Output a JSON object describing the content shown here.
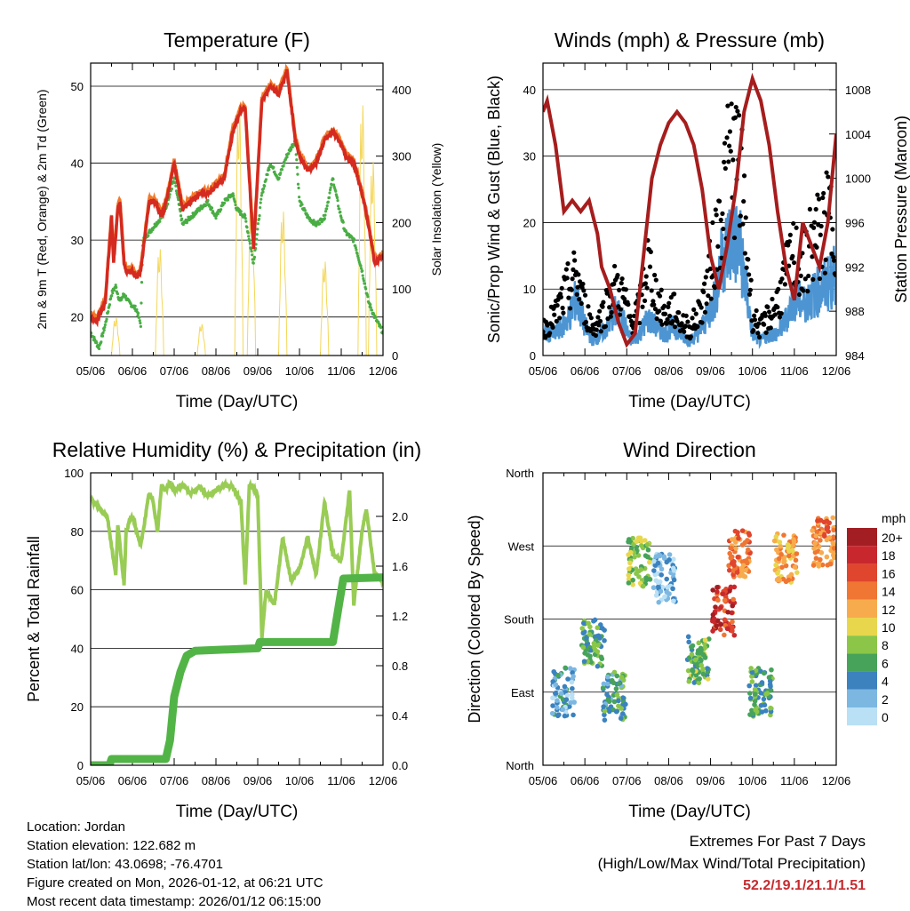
{
  "colors": {
    "temp_2m": "#d42a20",
    "temp_9m": "#f07a2a",
    "dewpoint": "#49ad44",
    "solar": "#f4d75a",
    "pressure": "#a61d1d",
    "wind": "#4d95d2",
    "gust": "#000000",
    "rh": "#99cc55",
    "precip": "#52b447"
  },
  "chart_data": [
    {
      "id": "temperature",
      "type": "line",
      "title": "Temperature (F)",
      "xlabel": "Time (Day/UTC)",
      "ylabel_left": "2m & 9m T (Red, Orange) & 2m Td (Green)",
      "ylabel_right": "Solar Insolation (Yellow)",
      "x_ticks": [
        "05/06",
        "06/06",
        "07/06",
        "08/06",
        "09/06",
        "10/06",
        "11/06",
        "12/06"
      ],
      "xlim": [
        0,
        7
      ],
      "ylim_left": [
        15,
        53
      ],
      "ylim_right": [
        0,
        440
      ],
      "y_ticks_left": [
        20,
        30,
        40,
        50
      ],
      "y_ticks_right": [
        0,
        100,
        200,
        300,
        400
      ],
      "series": [
        {
          "name": "2m T",
          "axis": "left",
          "color_key": "temp_2m",
          "x": [
            0,
            0.15,
            0.35,
            0.5,
            0.55,
            0.65,
            0.7,
            0.8,
            0.85,
            1.0,
            1.1,
            1.2,
            1.4,
            1.55,
            1.7,
            1.85,
            2.0,
            2.2,
            2.4,
            2.6,
            2.8,
            3.0,
            3.2,
            3.4,
            3.6,
            3.7,
            3.9,
            4.1,
            4.3,
            4.5,
            4.7,
            4.9,
            5.0,
            5.2,
            5.4,
            5.6,
            5.8,
            5.95,
            6.1,
            6.3,
            6.5,
            6.65,
            6.8,
            7.0
          ],
          "y": [
            20,
            19.5,
            22,
            33,
            27,
            34,
            35,
            27,
            26,
            26,
            25,
            26,
            35,
            35,
            33,
            36,
            40,
            34,
            35,
            36,
            36,
            37,
            38,
            44,
            47,
            47,
            29,
            48,
            50,
            49,
            52,
            43,
            41,
            39,
            40,
            43,
            44,
            43,
            41,
            40,
            36,
            32,
            27,
            28
          ]
        },
        {
          "name": "2m Td",
          "axis": "left",
          "color_key": "dewpoint",
          "x": [
            0,
            0.2,
            0.35,
            0.5,
            0.6,
            0.7,
            0.8,
            0.9,
            1.1,
            1.2,
            1.25,
            1.4,
            1.55,
            1.7,
            1.85,
            2.0,
            2.2,
            2.4,
            2.6,
            2.8,
            3.0,
            3.2,
            3.4,
            3.5,
            3.7,
            3.9,
            4.1,
            4.3,
            4.5,
            4.7,
            4.9,
            5.0,
            5.2,
            5.4,
            5.6,
            5.8,
            5.95,
            6.1,
            6.3,
            6.5,
            6.65,
            6.8,
            7.0
          ],
          "y": [
            18,
            16,
            19,
            23,
            24,
            22,
            23,
            22,
            21,
            19,
            30,
            31,
            32,
            33,
            35,
            38,
            32,
            33,
            34,
            35,
            33,
            35,
            36,
            34,
            33,
            27,
            36,
            40,
            38,
            41,
            43,
            35,
            33,
            32,
            33,
            38,
            34,
            31,
            30,
            26,
            22,
            20,
            18
          ]
        },
        {
          "name": "Solar",
          "axis": "right",
          "color_key": "solar",
          "peaks": [
            [
              0.6,
              60
            ],
            [
              1.65,
              170
            ],
            [
              2.65,
              50
            ],
            [
              3.55,
              400
            ],
            [
              3.85,
              250
            ],
            [
              4.6,
              230
            ],
            [
              5.6,
              150
            ],
            [
              6.5,
              400
            ],
            [
              6.75,
              310
            ]
          ]
        }
      ]
    },
    {
      "id": "winds",
      "type": "scatter",
      "title": "Winds (mph) & Pressure (mb)",
      "xlabel": "Time (Day/UTC)",
      "ylabel_left": "Sonic/Prop Wind & Gust (Blue, Black)",
      "ylabel_right": "Station Pressure (Maroon)",
      "x_ticks": [
        "05/06",
        "06/06",
        "07/06",
        "08/06",
        "09/06",
        "10/06",
        "11/06",
        "12/06"
      ],
      "xlim": [
        0,
        7
      ],
      "ylim_left": [
        0,
        44
      ],
      "ylim_right": [
        984,
        1010.4
      ],
      "y_ticks_left": [
        0,
        10,
        20,
        30,
        40
      ],
      "y_ticks_right": [
        984,
        988,
        992,
        996,
        1000,
        1004,
        1008
      ],
      "series": [
        {
          "name": "Wind",
          "axis": "left",
          "color_key": "wind",
          "x": [
            0,
            0.3,
            0.6,
            0.8,
            1.0,
            1.2,
            1.4,
            1.55,
            1.7,
            1.9,
            2.1,
            2.3,
            2.5,
            2.7,
            2.9,
            3.1,
            3.3,
            3.5,
            3.7,
            3.9,
            4.1,
            4.3,
            4.5,
            4.7,
            4.9,
            5.0,
            5.2,
            5.4,
            5.6,
            5.8,
            6.0,
            6.2,
            6.4,
            6.6,
            6.8,
            7.0
          ],
          "y": [
            3,
            3,
            5,
            8,
            4,
            2,
            3,
            4,
            6,
            5,
            2,
            3,
            5,
            4,
            3,
            4,
            3,
            2,
            3,
            5,
            8,
            14,
            16,
            15,
            7,
            3,
            2,
            3,
            3,
            5,
            8,
            7,
            8,
            9,
            10,
            11
          ]
        },
        {
          "name": "Gust",
          "axis": "left",
          "color_key": "gust",
          "x": [
            0,
            0.3,
            0.6,
            0.8,
            1.0,
            1.2,
            1.4,
            1.55,
            1.7,
            1.9,
            2.1,
            2.3,
            2.5,
            2.7,
            2.9,
            3.1,
            3.3,
            3.5,
            3.7,
            3.9,
            4.1,
            4.3,
            4.5,
            4.7,
            4.9,
            5.0,
            5.2,
            5.4,
            5.6,
            5.8,
            6.0,
            6.2,
            6.4,
            6.6,
            6.8,
            7.0
          ],
          "y": [
            4,
            6,
            10,
            12,
            7,
            4,
            6,
            8,
            10,
            9,
            5,
            7,
            14,
            9,
            6,
            7,
            5,
            4,
            6,
            10,
            16,
            24,
            30,
            28,
            14,
            6,
            4,
            6,
            8,
            12,
            15,
            13,
            17,
            18,
            20,
            20
          ]
        },
        {
          "name": "Pressure",
          "axis": "right",
          "color_key": "pressure",
          "x": [
            0,
            0.1,
            0.3,
            0.5,
            0.7,
            0.9,
            1.1,
            1.3,
            1.4,
            1.6,
            1.8,
            2.0,
            2.2,
            2.4,
            2.6,
            2.8,
            3.0,
            3.2,
            3.4,
            3.6,
            3.8,
            4.0,
            4.2,
            4.4,
            4.6,
            4.8,
            5.0,
            5.2,
            5.4,
            5.6,
            5.8,
            6.0,
            6.2,
            6.4,
            6.6,
            6.8,
            7.0
          ],
          "y": [
            1006,
            1007,
            1003,
            997,
            998,
            997,
            998,
            995,
            992,
            990,
            987,
            985,
            986,
            993,
            1000,
            1003,
            1005,
            1006,
            1005,
            1003,
            999,
            993,
            990,
            994,
            999,
            1006,
            1009,
            1007,
            1003,
            997,
            992,
            989,
            996,
            994,
            992,
            996,
            1004
          ]
        }
      ]
    },
    {
      "id": "humidity",
      "type": "line",
      "title": "Relative Humidity (%) & Precipitation (in)",
      "xlabel": "Time (Day/UTC)",
      "ylabel_left": "Percent & Total Rainfall",
      "x_ticks": [
        "05/06",
        "06/06",
        "07/06",
        "08/06",
        "09/06",
        "10/06",
        "11/06",
        "12/06"
      ],
      "xlim": [
        0,
        7
      ],
      "ylim_left": [
        0,
        100
      ],
      "ylim_right": [
        0,
        2.35
      ],
      "y_ticks_left": [
        0,
        20,
        40,
        60,
        80,
        100
      ],
      "y_ticks_right": [
        "0.0",
        "0.4",
        "0.8",
        "1.2",
        "1.6",
        "2.0"
      ],
      "series": [
        {
          "name": "RH",
          "axis": "left",
          "color_key": "rh",
          "x": [
            0,
            0.2,
            0.4,
            0.6,
            0.65,
            0.8,
            0.85,
            0.95,
            1.0,
            1.2,
            1.3,
            1.4,
            1.5,
            1.6,
            1.7,
            1.8,
            1.9,
            2.0,
            2.2,
            2.4,
            2.6,
            2.8,
            3.0,
            3.2,
            3.4,
            3.6,
            3.7,
            3.8,
            3.9,
            4.0,
            4.1,
            4.2,
            4.4,
            4.6,
            4.8,
            5.0,
            5.2,
            5.4,
            5.6,
            5.8,
            6.0,
            6.2,
            6.3,
            6.5,
            6.6,
            6.8,
            7.0
          ],
          "y": [
            91,
            88,
            85,
            65,
            82,
            62,
            80,
            84,
            85,
            75,
            84,
            93,
            90,
            80,
            96,
            94,
            97,
            94,
            96,
            93,
            95,
            92,
            94,
            96,
            95,
            90,
            62,
            96,
            95,
            92,
            44,
            60,
            55,
            78,
            63,
            67,
            78,
            65,
            90,
            72,
            70,
            94,
            55,
            80,
            88,
            65,
            63
          ]
        },
        {
          "name": "Precip",
          "axis": "right",
          "color_key": "precip",
          "x": [
            0,
            0.45,
            0.5,
            1.8,
            1.9,
            2.0,
            2.15,
            2.3,
            2.5,
            4.0,
            4.05,
            5.8,
            5.95,
            6.05,
            7.0
          ],
          "y": [
            0,
            0,
            0.05,
            0.05,
            0.2,
            0.55,
            0.75,
            0.88,
            0.92,
            0.94,
            0.99,
            0.99,
            1.3,
            1.5,
            1.51
          ]
        }
      ]
    },
    {
      "id": "direction",
      "type": "scatter",
      "title": "Wind Direction",
      "xlabel": "Time (Day/UTC)",
      "ylabel_left": "Direction (Colored By Speed)",
      "x_ticks": [
        "05/06",
        "06/06",
        "07/06",
        "08/06",
        "09/06",
        "10/06",
        "11/06",
        "12/06"
      ],
      "xlim": [
        0,
        7
      ],
      "ylim_left": [
        0,
        360
      ],
      "y_tick_labels": [
        "North",
        "East",
        "South",
        "West",
        "North"
      ],
      "legend_title": "mph",
      "legend_labels": [
        "20+",
        "18",
        "16",
        "14",
        "12",
        "10",
        "8",
        "6",
        "4",
        "2",
        "0"
      ],
      "legend_colors": [
        "#a31e22",
        "#c8282d",
        "#e0452e",
        "#ef7633",
        "#f8ab4d",
        "#e8d74d",
        "#8bc648",
        "#47a35a",
        "#3b82bf",
        "#7cb7e2",
        "#b9e0f5"
      ],
      "clusters": [
        {
          "x": 0.5,
          "dir": 90,
          "speed": 3
        },
        {
          "x": 1.2,
          "dir": 150,
          "speed": 6
        },
        {
          "x": 1.7,
          "dir": 85,
          "speed": 5
        },
        {
          "x": 2.3,
          "dir": 250,
          "speed": 8
        },
        {
          "x": 2.9,
          "dir": 230,
          "speed": 2
        },
        {
          "x": 3.7,
          "dir": 130,
          "speed": 7
        },
        {
          "x": 4.3,
          "dir": 190,
          "speed": 17
        },
        {
          "x": 4.7,
          "dir": 260,
          "speed": 14
        },
        {
          "x": 5.2,
          "dir": 90,
          "speed": 6
        },
        {
          "x": 5.8,
          "dir": 255,
          "speed": 12
        },
        {
          "x": 6.7,
          "dir": 275,
          "speed": 14
        }
      ]
    }
  ],
  "footer": {
    "location": "Location: Jordan",
    "elevation": "Station elevation: 122.682 m",
    "latlon": "Station lat/lon: 43.0698; -76.4701",
    "created": "Figure created on Mon, 2026-01-12, at 06:21 UTC",
    "recent": "Most recent data timestamp: 2026/01/12 06:15:00"
  },
  "extremes": {
    "title": "Extremes For Past 7 Days",
    "subtitle": "(High/Low/Max Wind/Total Precipitation)",
    "values": "52.2/19.1/21.1/1.51"
  }
}
